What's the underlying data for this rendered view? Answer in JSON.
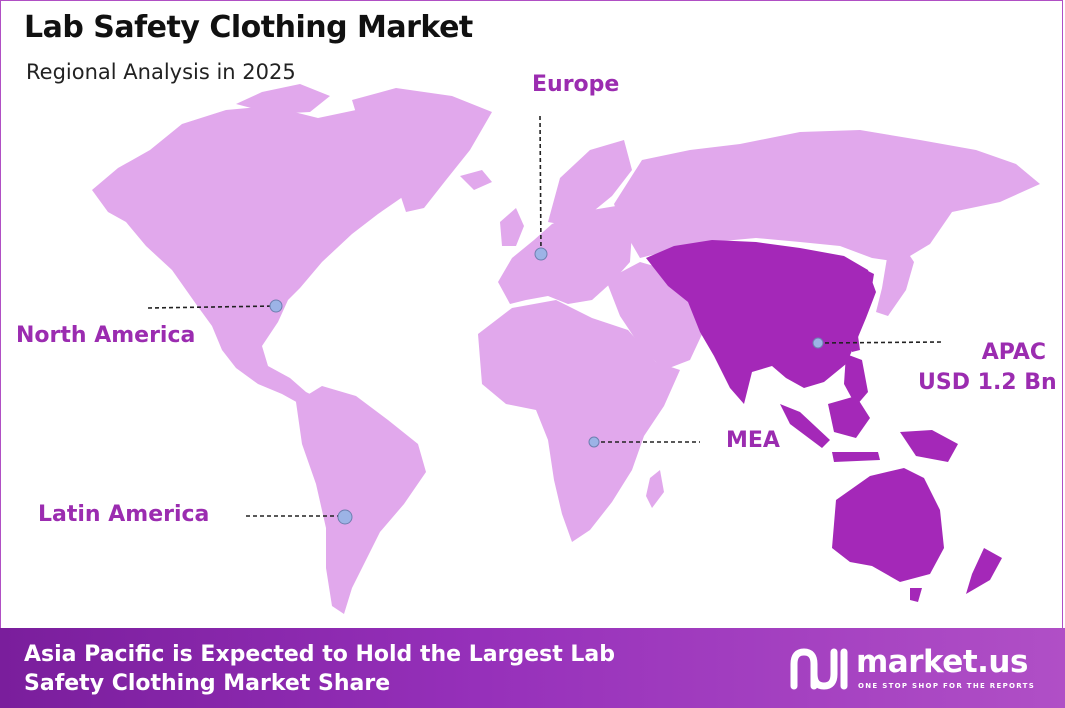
{
  "header": {
    "title": "Lab Safety Clothing Market",
    "subtitle": "Regional Analysis in 2025"
  },
  "colors": {
    "land": "#e1a8ec",
    "highlight": "#a428b8",
    "label": "#9b2cb0",
    "dot": "#9cb3e6",
    "footer_start": "#7a1e9c",
    "footer_end": "#b04fc6"
  },
  "regions": {
    "north_america": {
      "label": "North America",
      "highlighted": false
    },
    "europe": {
      "label": "Europe",
      "highlighted": false
    },
    "apac": {
      "label": "APAC",
      "value": "USD 1.2 Bn",
      "highlighted": true
    },
    "mea": {
      "label": "MEA",
      "highlighted": false
    },
    "latin_america": {
      "label": "Latin America",
      "highlighted": false
    }
  },
  "footer": {
    "text": "Asia Pacific is Expected to Hold the Largest Lab Safety Clothing Market Share",
    "brand": "market.us",
    "brand_tagline": "ONE STOP SHOP FOR THE REPORTS",
    "brand_logo_icon": "market-us-logo-icon"
  }
}
